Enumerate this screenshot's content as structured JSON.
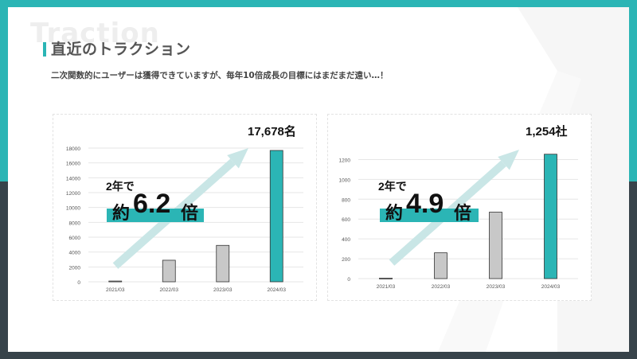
{
  "header": {
    "watermark": "Traction",
    "title": "直近のトラクション",
    "subtitle": "二次関数的にユーザーは獲得できていますが、毎年10倍成長の目標にはまだまだ遠い…！"
  },
  "colors": {
    "accent": "#2bb5b5",
    "dark": "#37434a",
    "bar_gray": "#c8c8c8",
    "arrow": "#c9e6e6"
  },
  "chart_data": [
    {
      "type": "bar",
      "categories": [
        "2021/03",
        "2022/03",
        "2023/03",
        "2024/03"
      ],
      "values": [
        100,
        2900,
        4900,
        17678
      ],
      "yticks": [
        0,
        2000,
        4000,
        6000,
        8000,
        10000,
        12000,
        14000,
        16000,
        18000
      ],
      "ylim": [
        0,
        18000
      ],
      "highlight_index": 3,
      "value_label": "17,678名",
      "growth_prefix": "2年で",
      "growth_mult_char": "約",
      "growth_mult_num": "6.2",
      "growth_mult_suffix": "倍",
      "grid": true
    },
    {
      "type": "bar",
      "categories": [
        "2021/03",
        "2022/03",
        "2023/03",
        "2024/03"
      ],
      "values": [
        5,
        260,
        670,
        1254
      ],
      "yticks": [
        0,
        200,
        400,
        600,
        800,
        1000,
        1200
      ],
      "ylim": [
        0,
        1300
      ],
      "highlight_index": 3,
      "value_label": "1,254社",
      "growth_prefix": "2年で",
      "growth_mult_char": "約",
      "growth_mult_num": "4.9",
      "growth_mult_suffix": "倍",
      "grid": true
    }
  ]
}
